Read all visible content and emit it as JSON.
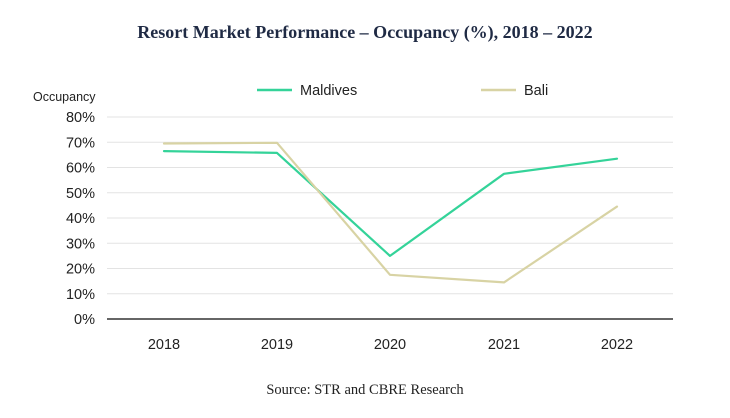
{
  "title": "Resort Market Performance – Occupancy (%), 2018 – 2022",
  "source": "Source: STR and CBRE Research",
  "colors": {
    "maldives": "#34d399",
    "bali": "#d8d3a4",
    "grid": "#e3e3e3",
    "axis": "#333333"
  },
  "chart_data": {
    "type": "line",
    "categories": [
      "2018",
      "2019",
      "2020",
      "2021",
      "2022"
    ],
    "ylabel": "Occupancy",
    "ylim": [
      0,
      80
    ],
    "yticks": [
      "0%",
      "10%",
      "20%",
      "30%",
      "40%",
      "50%",
      "60%",
      "70%",
      "80%"
    ],
    "grid": true,
    "legend": "top",
    "series": [
      {
        "name": "Maldives",
        "values": [
          66.5,
          65.8,
          25,
          57.5,
          63.5
        ]
      },
      {
        "name": "Bali",
        "values": [
          69.5,
          69.8,
          17.5,
          14.5,
          44.5
        ]
      }
    ]
  }
}
